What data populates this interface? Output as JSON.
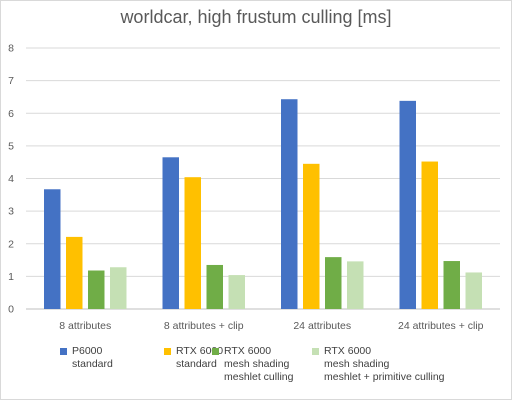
{
  "chart_data": {
    "type": "bar",
    "title": "worldcar, high frustum culling [ms]",
    "xlabel": "",
    "ylabel": "",
    "ylim": [
      0,
      8
    ],
    "yticks": [
      0,
      1,
      2,
      3,
      4,
      5,
      6,
      7,
      8
    ],
    "grid": true,
    "legend_position": "bottom",
    "categories": [
      "8 attributes",
      "8 attributes + clip",
      "24 attributes",
      "24 attributes + clip"
    ],
    "series": [
      {
        "name": "P6000\nstandard",
        "color": "#4472c4",
        "values": [
          3.67,
          4.65,
          6.43,
          6.38
        ]
      },
      {
        "name": "RTX 6000\nstandard",
        "color": "#ffc000",
        "values": [
          2.21,
          4.04,
          4.45,
          4.52
        ]
      },
      {
        "name": "RTX 6000\nmesh shading\nmeshlet culling",
        "color": "#70ad47",
        "values": [
          1.18,
          1.35,
          1.59,
          1.47
        ]
      },
      {
        "name": "RTX 6000\nmesh shading\nmeshlet + primitive culling",
        "color": "#c5e0b4",
        "values": [
          1.28,
          1.04,
          1.46,
          1.12
        ]
      }
    ]
  }
}
